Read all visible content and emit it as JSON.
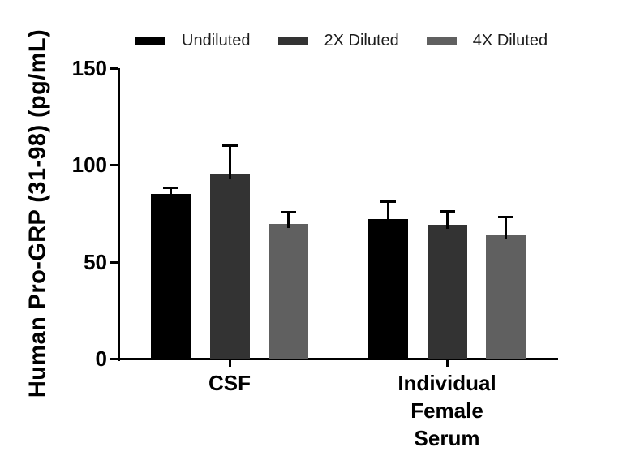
{
  "figure": {
    "background": "#ffffff",
    "axis_color": "#000000",
    "text_color": "#000000",
    "legend_text_color": "#1c1c1c",
    "error_bar_color": "#000000"
  },
  "chart_data": {
    "type": "bar",
    "title": "",
    "ylabel": "Human Pro-GRP (31-98) (pg/mL)",
    "xlabel": "",
    "ylim": [
      0,
      150
    ],
    "yticks": [
      0,
      50,
      100,
      150
    ],
    "ytick_labels": [
      "0",
      "50",
      "100",
      "150"
    ],
    "grid": false,
    "legend_position": "top",
    "error_bars": "sd, upper only",
    "categories": [
      "CSF",
      "Individual Female Serum"
    ],
    "category_label_lines": [
      [
        "CSF"
      ],
      [
        "Individual",
        "Female",
        "Serum"
      ]
    ],
    "series": [
      {
        "name": "Undiluted",
        "color": "#000000",
        "values": [
          85,
          72
        ],
        "errors_sd": [
          3,
          9
        ]
      },
      {
        "name": "2X Diluted",
        "color": "#333333",
        "values": [
          95,
          69
        ],
        "errors_sd": [
          15,
          7
        ]
      },
      {
        "name": "4X Diluted",
        "color": "#606060",
        "values": [
          69.5,
          64
        ],
        "errors_sd": [
          6,
          9
        ]
      }
    ]
  }
}
